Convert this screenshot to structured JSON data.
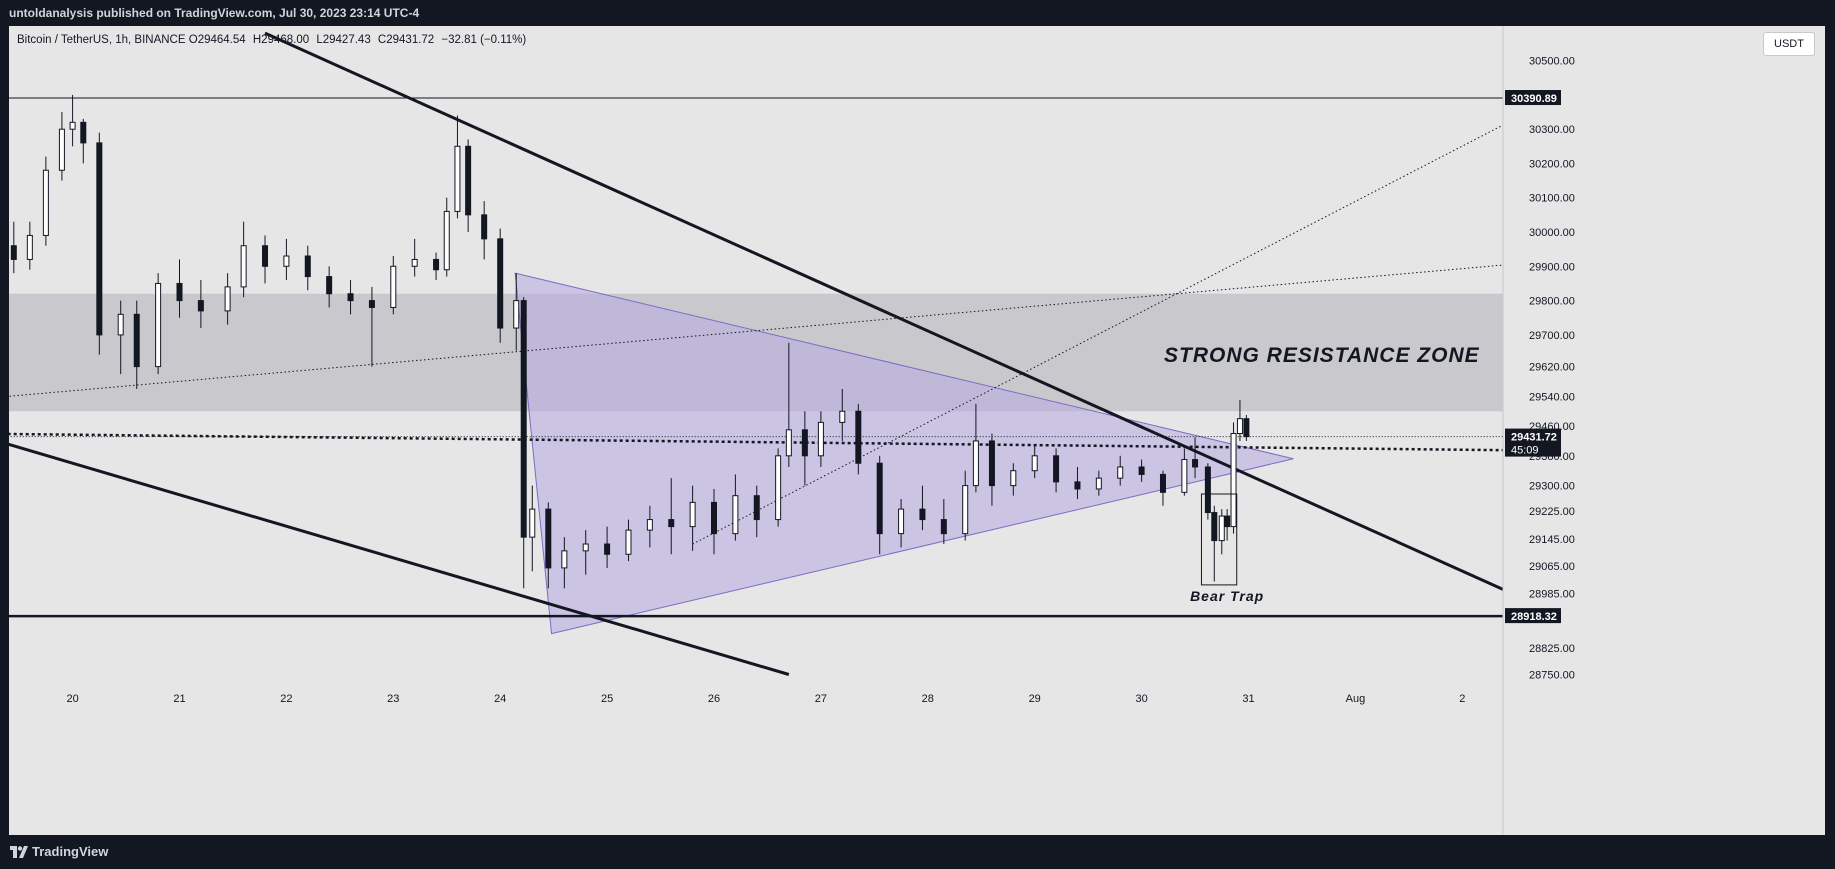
{
  "header": {
    "publisher_line": "untoldanalysis published on TradingView.com, Jul 30, 2023 23:14 UTC-4"
  },
  "legend": {
    "symbol": "Bitcoin / TetherUS, 1h, BINANCE",
    "open_label": "O",
    "open": "29464.54",
    "high_label": "H",
    "high": "29468.00",
    "low_label": "L",
    "low": "29427.43",
    "close_label": "C",
    "close": "29431.72",
    "change": "−32.81 (−0.11%)"
  },
  "currency_button": "USDT",
  "footer": {
    "brand": "TradingView"
  },
  "colors": {
    "background": "#e6e6e6",
    "resistance_zone": "#c9c9cd",
    "triangle_fill": "#b9aee0",
    "triangle_stroke": "#7e6cc4",
    "candle": "#131722",
    "frame": "#131722"
  },
  "chart_data": {
    "type": "candlestick",
    "symbol": "Bitcoin / TetherUS",
    "interval": "1h",
    "exchange": "BINANCE",
    "x_tick_labels": [
      "20",
      "21",
      "22",
      "23",
      "24",
      "25",
      "26",
      "27",
      "28",
      "29",
      "30",
      "31",
      "Aug",
      "2"
    ],
    "y_tick_labels": [
      30500,
      30300,
      30200,
      30100,
      30000,
      29900,
      29800,
      29700,
      29620,
      29540,
      29460,
      29380,
      29300,
      29225,
      29145,
      29065,
      28985,
      28825,
      28750
    ],
    "y_tick_text": [
      "30500.00",
      "30300.00",
      "30200.00",
      "30100.00",
      "30000.00",
      "29900.00",
      "29800.00",
      "29700.00",
      "29620.00",
      "29540.00",
      "29460.00",
      "29380.00",
      "29300.00",
      "29225.00",
      "29145.00",
      "29065.00",
      "28985.00",
      "28825.00",
      "28750.00"
    ],
    "highlighted_prices": [
      {
        "price": 30390.89,
        "label": "30390.89"
      },
      {
        "price": 29431.72,
        "label": "29431.72",
        "sub": "45:09"
      },
      {
        "price": 28918.32,
        "label": "28918.32"
      }
    ],
    "resistance_zone": {
      "from": 29500,
      "to": 29820,
      "label": "STRONG RESISTANCE ZONE"
    },
    "annotations": [
      {
        "text": "Bear Trap",
        "day": 30.8,
        "price": 29000
      }
    ],
    "triangle": [
      {
        "day": 24.14,
        "price": 29880
      },
      {
        "day": 31.42,
        "price": 29372
      },
      {
        "day": 24.48,
        "price": 28867
      }
    ],
    "trend_lines": [
      {
        "name": "upper-descending",
        "points": [
          {
            "day": 21.8,
            "price": 30580
          },
          {
            "day": 33.43,
            "price": 28990
          }
        ]
      },
      {
        "name": "lower-descending",
        "points": [
          {
            "day": 19.0,
            "price": 29445
          },
          {
            "day": 26.7,
            "price": 28750
          }
        ]
      },
      {
        "name": "dotted-rising-1",
        "points": [
          {
            "day": 19.0,
            "price": 29530
          },
          {
            "day": 33.43,
            "price": 29905
          }
        ]
      },
      {
        "name": "dotted-rising-2",
        "points": [
          {
            "day": 25.8,
            "price": 29130
          },
          {
            "day": 33.43,
            "price": 30320
          }
        ]
      }
    ],
    "horizontal_levels": [
      30390.89,
      28918.32
    ],
    "dotted_levels": [
      {
        "from_day": 19.0,
        "from_price": 29440,
        "to_day": 33.43,
        "to_price": 29395,
        "bold": true
      },
      {
        "from_day": 19.0,
        "from_price": 29431.72,
        "to_day": 33.43,
        "to_price": 29431.72,
        "bold": false
      }
    ],
    "bear_trap_box": {
      "from_day": 30.56,
      "to_day": 30.89,
      "from_price": 29010,
      "to_price": 29275
    },
    "ohlc_hourly_approx": [
      {
        "day": 19.0,
        "o": 29880,
        "h": 29990,
        "l": 29760,
        "c": 29940
      },
      {
        "day": 19.1,
        "o": 29940,
        "h": 30060,
        "l": 29900,
        "c": 30020
      },
      {
        "day": 19.2,
        "o": 30020,
        "h": 30090,
        "l": 29850,
        "c": 29900
      },
      {
        "day": 19.3,
        "o": 29900,
        "h": 30020,
        "l": 29860,
        "c": 29960
      },
      {
        "day": 19.45,
        "o": 29960,
        "h": 30030,
        "l": 29880,
        "c": 29920
      },
      {
        "day": 19.6,
        "o": 29920,
        "h": 30030,
        "l": 29890,
        "c": 29990
      },
      {
        "day": 19.75,
        "o": 29990,
        "h": 30220,
        "l": 29960,
        "c": 30180
      },
      {
        "day": 19.9,
        "o": 30180,
        "h": 30350,
        "l": 30150,
        "c": 30300
      },
      {
        "day": 20.0,
        "o": 30300,
        "h": 30400,
        "l": 30250,
        "c": 30320
      },
      {
        "day": 20.1,
        "o": 30320,
        "h": 30330,
        "l": 30200,
        "c": 30260
      },
      {
        "day": 20.25,
        "o": 30260,
        "h": 30290,
        "l": 29650,
        "c": 29700
      },
      {
        "day": 20.45,
        "o": 29700,
        "h": 29800,
        "l": 29600,
        "c": 29760
      },
      {
        "day": 20.6,
        "o": 29760,
        "h": 29800,
        "l": 29560,
        "c": 29620
      },
      {
        "day": 20.8,
        "o": 29620,
        "h": 29880,
        "l": 29600,
        "c": 29850
      },
      {
        "day": 21.0,
        "o": 29850,
        "h": 29920,
        "l": 29750,
        "c": 29800
      },
      {
        "day": 21.2,
        "o": 29800,
        "h": 29860,
        "l": 29720,
        "c": 29770
      },
      {
        "day": 21.45,
        "o": 29770,
        "h": 29880,
        "l": 29730,
        "c": 29840
      },
      {
        "day": 21.6,
        "o": 29840,
        "h": 30030,
        "l": 29810,
        "c": 29960
      },
      {
        "day": 21.8,
        "o": 29960,
        "h": 29990,
        "l": 29850,
        "c": 29900
      },
      {
        "day": 22.0,
        "o": 29900,
        "h": 29980,
        "l": 29860,
        "c": 29930
      },
      {
        "day": 22.2,
        "o": 29930,
        "h": 29960,
        "l": 29830,
        "c": 29870
      },
      {
        "day": 22.4,
        "o": 29870,
        "h": 29900,
        "l": 29780,
        "c": 29820
      },
      {
        "day": 22.6,
        "o": 29820,
        "h": 29860,
        "l": 29760,
        "c": 29800
      },
      {
        "day": 22.8,
        "o": 29800,
        "h": 29840,
        "l": 29620,
        "c": 29780
      },
      {
        "day": 23.0,
        "o": 29780,
        "h": 29930,
        "l": 29760,
        "c": 29900
      },
      {
        "day": 23.2,
        "o": 29900,
        "h": 29980,
        "l": 29870,
        "c": 29920
      },
      {
        "day": 23.4,
        "o": 29920,
        "h": 29940,
        "l": 29860,
        "c": 29890
      },
      {
        "day": 23.5,
        "o": 29890,
        "h": 30100,
        "l": 29870,
        "c": 30060
      },
      {
        "day": 23.6,
        "o": 30060,
        "h": 30340,
        "l": 30040,
        "c": 30250
      },
      {
        "day": 23.7,
        "o": 30250,
        "h": 30270,
        "l": 30000,
        "c": 30050
      },
      {
        "day": 23.85,
        "o": 30050,
        "h": 30090,
        "l": 29920,
        "c": 29980
      },
      {
        "day": 24.0,
        "o": 29980,
        "h": 30010,
        "l": 29680,
        "c": 29720
      },
      {
        "day": 24.15,
        "o": 29720,
        "h": 29880,
        "l": 29660,
        "c": 29800
      },
      {
        "day": 24.22,
        "o": 29800,
        "h": 29810,
        "l": 29000,
        "c": 29150
      },
      {
        "day": 24.3,
        "o": 29150,
        "h": 29300,
        "l": 29050,
        "c": 29230
      },
      {
        "day": 24.45,
        "o": 29230,
        "h": 29250,
        "l": 29000,
        "c": 29060
      },
      {
        "day": 24.6,
        "o": 29060,
        "h": 29150,
        "l": 29000,
        "c": 29110
      },
      {
        "day": 24.8,
        "o": 29110,
        "h": 29170,
        "l": 29040,
        "c": 29130
      },
      {
        "day": 25.0,
        "o": 29130,
        "h": 29180,
        "l": 29060,
        "c": 29100
      },
      {
        "day": 25.2,
        "o": 29100,
        "h": 29200,
        "l": 29080,
        "c": 29170
      },
      {
        "day": 25.4,
        "o": 29170,
        "h": 29240,
        "l": 29120,
        "c": 29200
      },
      {
        "day": 25.6,
        "o": 29200,
        "h": 29320,
        "l": 29100,
        "c": 29180
      },
      {
        "day": 25.8,
        "o": 29180,
        "h": 29300,
        "l": 29110,
        "c": 29250
      },
      {
        "day": 26.0,
        "o": 29250,
        "h": 29290,
        "l": 29100,
        "c": 29160
      },
      {
        "day": 26.2,
        "o": 29160,
        "h": 29330,
        "l": 29140,
        "c": 29270
      },
      {
        "day": 26.4,
        "o": 29270,
        "h": 29300,
        "l": 29150,
        "c": 29200
      },
      {
        "day": 26.6,
        "o": 29200,
        "h": 29400,
        "l": 29180,
        "c": 29380
      },
      {
        "day": 26.7,
        "o": 29380,
        "h": 29680,
        "l": 29350,
        "c": 29450
      },
      {
        "day": 26.85,
        "o": 29450,
        "h": 29500,
        "l": 29300,
        "c": 29380
      },
      {
        "day": 27.0,
        "o": 29380,
        "h": 29500,
        "l": 29350,
        "c": 29470
      },
      {
        "day": 27.2,
        "o": 29470,
        "h": 29560,
        "l": 29420,
        "c": 29500
      },
      {
        "day": 27.35,
        "o": 29500,
        "h": 29520,
        "l": 29330,
        "c": 29360
      },
      {
        "day": 27.55,
        "o": 29360,
        "h": 29380,
        "l": 29100,
        "c": 29160
      },
      {
        "day": 27.75,
        "o": 29160,
        "h": 29260,
        "l": 29120,
        "c": 29230
      },
      {
        "day": 27.95,
        "o": 29230,
        "h": 29300,
        "l": 29170,
        "c": 29200
      },
      {
        "day": 28.15,
        "o": 29200,
        "h": 29260,
        "l": 29130,
        "c": 29160
      },
      {
        "day": 28.35,
        "o": 29160,
        "h": 29340,
        "l": 29140,
        "c": 29300
      },
      {
        "day": 28.45,
        "o": 29300,
        "h": 29520,
        "l": 29280,
        "c": 29420
      },
      {
        "day": 28.6,
        "o": 29420,
        "h": 29440,
        "l": 29240,
        "c": 29300
      },
      {
        "day": 28.8,
        "o": 29300,
        "h": 29360,
        "l": 29270,
        "c": 29340
      },
      {
        "day": 29.0,
        "o": 29340,
        "h": 29410,
        "l": 29320,
        "c": 29380
      },
      {
        "day": 29.2,
        "o": 29380,
        "h": 29400,
        "l": 29280,
        "c": 29310
      },
      {
        "day": 29.4,
        "o": 29310,
        "h": 29350,
        "l": 29260,
        "c": 29290
      },
      {
        "day": 29.6,
        "o": 29290,
        "h": 29340,
        "l": 29270,
        "c": 29320
      },
      {
        "day": 29.8,
        "o": 29320,
        "h": 29380,
        "l": 29300,
        "c": 29350
      },
      {
        "day": 30.0,
        "o": 29350,
        "h": 29370,
        "l": 29310,
        "c": 29330
      },
      {
        "day": 30.2,
        "o": 29330,
        "h": 29340,
        "l": 29240,
        "c": 29280
      },
      {
        "day": 30.4,
        "o": 29280,
        "h": 29400,
        "l": 29270,
        "c": 29370
      },
      {
        "day": 30.5,
        "o": 29370,
        "h": 29430,
        "l": 29320,
        "c": 29350
      },
      {
        "day": 30.62,
        "o": 29350,
        "h": 29360,
        "l": 29200,
        "c": 29220
      },
      {
        "day": 30.68,
        "o": 29220,
        "h": 29240,
        "l": 29020,
        "c": 29140
      },
      {
        "day": 30.75,
        "o": 29140,
        "h": 29230,
        "l": 29100,
        "c": 29210
      },
      {
        "day": 30.8,
        "o": 29210,
        "h": 29230,
        "l": 29140,
        "c": 29180
      },
      {
        "day": 30.86,
        "o": 29180,
        "h": 29470,
        "l": 29160,
        "c": 29440
      },
      {
        "day": 30.92,
        "o": 29440,
        "h": 29530,
        "l": 29420,
        "c": 29480
      },
      {
        "day": 30.98,
        "o": 29480,
        "h": 29490,
        "l": 29420,
        "c": 29431.72
      }
    ]
  }
}
